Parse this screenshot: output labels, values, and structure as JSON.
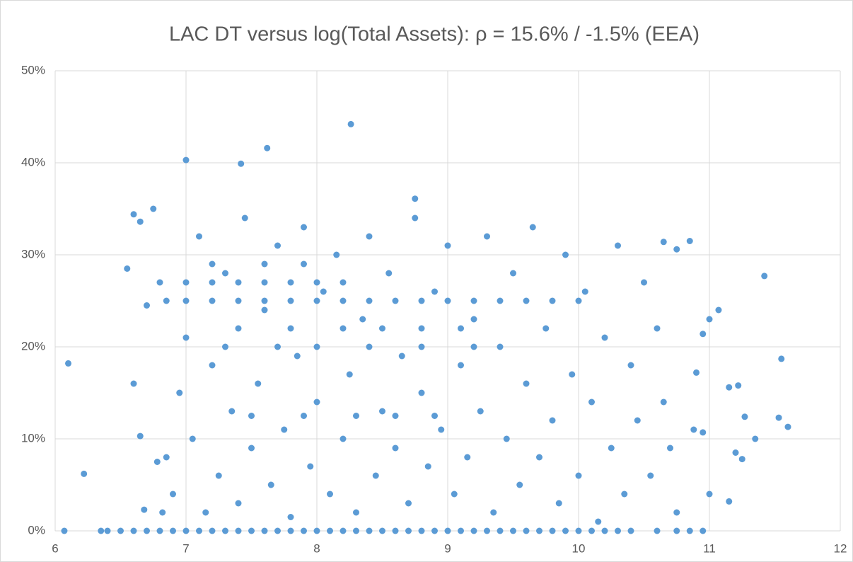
{
  "chart_data": {
    "type": "scatter",
    "title": "LAC DT versus log(Total Assets): ρ = 15.6% / -1.5% (EEA)",
    "color": "#5b9bd5",
    "grid": true,
    "xlim": [
      6,
      12
    ],
    "xticks": [
      6,
      7,
      8,
      9,
      10,
      11,
      12
    ],
    "ylim": [
      0,
      50
    ],
    "yticks": [
      {
        "value": 0,
        "label": "0%"
      },
      {
        "value": 10,
        "label": "10%"
      },
      {
        "value": 20,
        "label": "20%"
      },
      {
        "value": 30,
        "label": "30%"
      },
      {
        "value": 40,
        "label": "40%"
      },
      {
        "value": 50,
        "label": "50%"
      }
    ],
    "x": [
      6.07,
      6.1,
      6.22,
      6.55,
      6.6,
      6.75,
      6.65,
      7.0,
      7.42,
      7.62,
      8.26,
      8.75,
      11.42,
      11.55,
      11.6,
      11.53,
      11.35,
      11.27,
      11.22,
      11.15,
      11.15,
      11.2,
      11.25,
      11.0,
      11.07,
      11.0,
      10.95,
      10.9,
      10.88,
      10.95,
      10.85,
      10.75,
      10.65,
      6.35,
      6.4,
      6.5,
      6.6,
      6.7,
      6.8,
      6.9,
      7.0,
      7.1,
      7.2,
      7.3,
      7.4,
      7.5,
      7.6,
      7.7,
      7.8,
      7.9,
      8.0,
      8.1,
      8.2,
      8.3,
      8.4,
      8.5,
      8.6,
      8.7,
      8.8,
      8.9,
      9.0,
      9.1,
      9.2,
      9.3,
      9.4,
      9.5,
      9.6,
      9.7,
      9.8,
      9.9,
      10.0,
      10.1,
      10.2,
      10.3,
      10.4,
      10.6,
      10.75,
      10.85,
      10.95,
      6.85,
      7.0,
      7.2,
      7.4,
      7.6,
      7.8,
      8.0,
      8.2,
      8.4,
      8.6,
      8.8,
      9.0,
      9.2,
      9.4,
      9.6,
      9.8,
      10.0,
      6.8,
      7.0,
      7.2,
      7.4,
      7.6,
      7.8,
      8.0,
      8.2,
      7.4,
      7.8,
      8.2,
      8.5,
      8.8,
      9.1,
      7.3,
      7.7,
      8.0,
      8.4,
      8.8,
      9.2,
      7.5,
      7.9,
      8.3,
      8.6,
      8.9,
      7.6,
      7.9,
      7.2,
      6.85,
      6.9,
      6.95,
      7.0,
      7.05,
      7.1,
      7.15,
      7.2,
      7.25,
      7.3,
      7.35,
      7.4,
      7.45,
      7.5,
      7.55,
      7.6,
      7.65,
      7.7,
      7.75,
      7.8,
      7.85,
      7.9,
      7.95,
      8.0,
      8.05,
      8.1,
      8.15,
      8.2,
      8.25,
      8.3,
      8.35,
      8.4,
      8.45,
      8.5,
      8.55,
      8.6,
      8.65,
      8.7,
      8.75,
      8.8,
      8.85,
      8.9,
      8.95,
      9.0,
      9.05,
      9.1,
      9.15,
      9.2,
      9.25,
      9.3,
      9.35,
      9.4,
      9.45,
      9.5,
      9.55,
      9.6,
      9.65,
      9.7,
      9.75,
      9.8,
      9.85,
      9.9,
      9.95,
      10.0,
      10.05,
      10.1,
      10.15,
      10.2,
      10.25,
      10.3,
      10.35,
      10.4,
      10.45,
      10.5,
      10.55,
      10.6,
      10.65,
      10.7,
      10.75,
      6.6,
      6.65,
      6.7,
      6.68,
      6.82,
      6.78
    ],
    "values": [
      0,
      18.2,
      6.2,
      28.5,
      34.4,
      35,
      33.6,
      40.3,
      39.9,
      41.6,
      44.2,
      36.1,
      27.7,
      18.7,
      11.3,
      12.3,
      10,
      12.4,
      15.8,
      15.6,
      3.2,
      8.5,
      7.8,
      4,
      24,
      23,
      21.4,
      17.2,
      11,
      10.7,
      31.5,
      30.6,
      31.4,
      0,
      0,
      0,
      0,
      0,
      0,
      0,
      0,
      0,
      0,
      0,
      0,
      0,
      0,
      0,
      0,
      0,
      0,
      0,
      0,
      0,
      0,
      0,
      0,
      0,
      0,
      0,
      0,
      0,
      0,
      0,
      0,
      0,
      0,
      0,
      0,
      0,
      0,
      0,
      0,
      0,
      0,
      0,
      0,
      0,
      0,
      25,
      25,
      25,
      25,
      25,
      25,
      25,
      25,
      25,
      25,
      25,
      25,
      25,
      25,
      25,
      25,
      25,
      27,
      27,
      27,
      27,
      27,
      27,
      27,
      27,
      22,
      22,
      22,
      22,
      22,
      22,
      20,
      20,
      20,
      20,
      20,
      20,
      12.5,
      12.5,
      12.5,
      12.5,
      12.5,
      29,
      29,
      29,
      8,
      4,
      15,
      21,
      10,
      32,
      2,
      18,
      6,
      28,
      13,
      3,
      34,
      9,
      16,
      24,
      5,
      31,
      11,
      1.5,
      19,
      33,
      7,
      14,
      26,
      4,
      30,
      10,
      17,
      2,
      23,
      32,
      6,
      13,
      28,
      9,
      19,
      3,
      34,
      15,
      7,
      26,
      11,
      31,
      4,
      18,
      8,
      23,
      13,
      32,
      2,
      20,
      10,
      28,
      5,
      16,
      33,
      8,
      22,
      12,
      3,
      30,
      17,
      6,
      26,
      14,
      1,
      21,
      9,
      31,
      4,
      18,
      12,
      27,
      6,
      22,
      14,
      9,
      2,
      16,
      10.3,
      24.5,
      2.3,
      2,
      7.5
    ]
  }
}
